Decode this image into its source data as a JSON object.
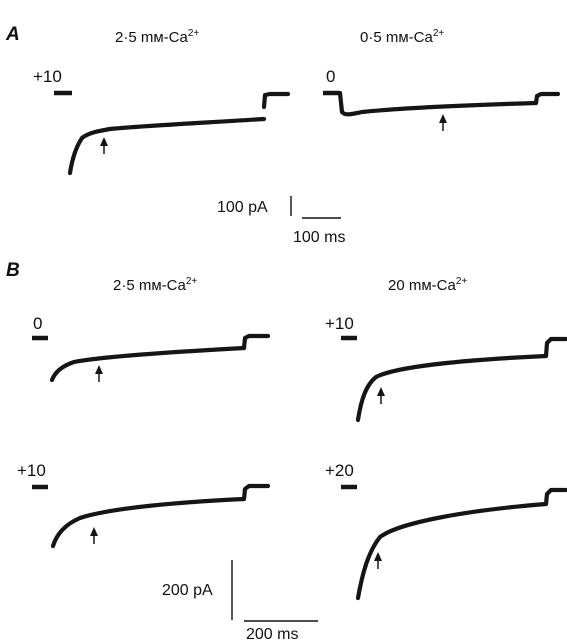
{
  "figure": {
    "panel_a": {
      "letter": "A",
      "left": {
        "condition": "2·5 mм-Ca",
        "superscript": "2+",
        "voltage": "+10"
      },
      "right": {
        "condition": "0·5 mм-Ca",
        "superscript": "2+",
        "voltage": "0"
      },
      "scale": {
        "current": "100 pA",
        "time": "100 ms"
      }
    },
    "panel_b": {
      "letter": "B",
      "left_col": {
        "condition": "2·5 mм-Ca",
        "superscript": "2+"
      },
      "right_col": {
        "condition": "20 mм-Ca",
        "superscript": "2+"
      },
      "voltages": {
        "top_left": "0",
        "top_right": "+10",
        "bottom_left": "+10",
        "bottom_right": "+20"
      },
      "scale": {
        "current": "200 pA",
        "time": "200 ms"
      }
    },
    "colors": {
      "trace": "#151515",
      "background": "#ffffff"
    }
  }
}
